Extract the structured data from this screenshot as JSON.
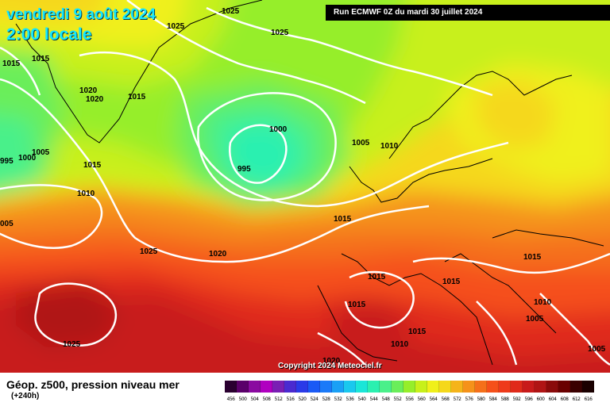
{
  "header": {
    "date": "vendredi 9 août 2024",
    "time": "2:00 locale",
    "run": "Run ECMWF 0Z du mardi 30 juillet 2024"
  },
  "copyright": "Copyright 2024 Meteociel.fr",
  "legend": {
    "title": "Géop. z500, pression niveau mer",
    "subtitle": "(+240h)",
    "scale_values": [
      "456",
      "500",
      "504",
      "508",
      "512",
      "516",
      "520",
      "524",
      "528",
      "532",
      "536",
      "540",
      "544",
      "548",
      "552",
      "556",
      "560",
      "564",
      "568",
      "572",
      "576",
      "580",
      "584",
      "588",
      "592",
      "596",
      "600",
      "604",
      "608",
      "612",
      "616"
    ],
    "scale_colors": [
      "#2a0030",
      "#5a006a",
      "#8a0aa0",
      "#b000c0",
      "#7a1eb4",
      "#4a2ad0",
      "#2a3ae8",
      "#1a5af5",
      "#1a7af8",
      "#1aa0f5",
      "#1ac8ee",
      "#1ae6d8",
      "#2af0b0",
      "#4af08a",
      "#6aee5a",
      "#96ee2a",
      "#c8f01a",
      "#f0f01a",
      "#f5d81a",
      "#f5b41a",
      "#f5921a",
      "#f5701a",
      "#f5501a",
      "#ee3a1a",
      "#e02a1a",
      "#c81a1a",
      "#b01414",
      "#8a0a0a",
      "#6a0000",
      "#3a0000",
      "#1a0000"
    ]
  },
  "isobars": [
    {
      "text": "1025"
    },
    {
      "text": "1025"
    },
    {
      "text": "1025"
    },
    {
      "text": "1015"
    },
    {
      "text": "1015"
    },
    {
      "text": "1020"
    },
    {
      "text": "1020"
    },
    {
      "text": "1015"
    },
    {
      "text": "1000"
    },
    {
      "text": "1005"
    },
    {
      "text": "1000"
    },
    {
      "text": "995"
    },
    {
      "text": "1015"
    },
    {
      "text": "995"
    },
    {
      "text": "1005"
    },
    {
      "text": "1010"
    },
    {
      "text": "1010"
    },
    {
      "text": "1015"
    },
    {
      "text": "005"
    },
    {
      "text": "1025"
    },
    {
      "text": "1020"
    },
    {
      "text": "1015"
    },
    {
      "text": "1015"
    },
    {
      "text": "1015"
    },
    {
      "text": "1015"
    },
    {
      "text": "1010"
    },
    {
      "text": "1005"
    },
    {
      "text": "1025"
    },
    {
      "text": "1015"
    },
    {
      "text": "1010"
    },
    {
      "text": "1020"
    },
    {
      "text": "1005"
    }
  ]
}
